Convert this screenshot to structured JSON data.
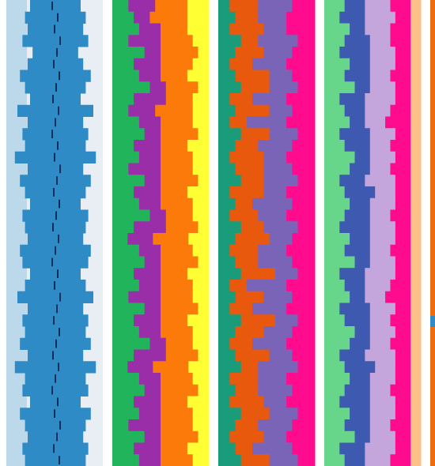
{
  "colors": {
    "blue": "#2f8bc6",
    "blue_light": "#bcd9ec",
    "blue_very_light": "#e8eef4",
    "dark_tick": "#0d2d5a",
    "green": "#22b45a",
    "purple": "#9a2ea8",
    "orange": "#fb7a0a",
    "yellow": "#ffff33",
    "magenta": "#ff0b8e",
    "grey_purple": "#7a64b8",
    "teal": "#1a9c7a",
    "orange_red": "#e8590d",
    "mint": "#67d68a",
    "navy": "#3d5ab0",
    "lavender": "#c4a5dc",
    "peach": "#fcc08a",
    "right_edge": "#f06a0e"
  },
  "chart_data": [
    {
      "type": "area",
      "panel": 1,
      "rows": 40,
      "series": [
        {
          "name": "",
          "values": [
            10,
            12,
            11,
            13,
            9,
            11,
            14,
            12,
            10,
            15,
            11,
            13,
            12,
            16,
            11,
            14,
            12,
            10,
            13,
            12,
            11,
            14,
            13,
            10,
            12,
            15,
            11,
            13,
            12,
            14,
            11,
            16,
            12,
            13,
            10,
            14,
            12,
            11,
            13,
            12
          ]
        }
      ]
    },
    {
      "type": "area",
      "panel": 2,
      "rows": 40,
      "series": [
        {
          "name": "",
          "values": [
            3,
            4,
            5,
            3,
            6,
            4,
            5,
            7,
            4,
            3,
            5,
            6,
            4,
            5,
            3,
            6,
            4,
            5,
            7,
            4,
            3,
            5,
            6,
            4,
            5,
            3,
            6,
            4,
            5,
            7,
            4,
            3,
            5,
            6,
            4,
            5,
            3,
            6,
            4,
            5
          ]
        },
        {
          "name": "",
          "values": [
            5,
            3,
            4,
            6,
            3,
            5,
            4,
            3,
            6,
            5,
            4,
            3,
            5,
            4,
            6,
            3,
            5,
            4,
            3,
            6,
            5,
            4,
            3,
            5,
            4,
            6,
            3,
            5,
            4,
            3,
            6,
            5,
            4,
            3,
            5,
            4,
            6,
            3,
            5,
            4
          ]
        },
        {
          "name": "",
          "values": [
            6,
            7,
            5,
            6,
            7,
            6,
            5,
            6,
            5,
            7,
            6,
            7,
            5,
            6,
            6,
            7,
            5,
            6,
            5,
            6,
            7,
            6,
            7,
            5,
            6,
            6,
            7,
            5,
            6,
            5,
            6,
            7,
            6,
            7,
            5,
            6,
            6,
            7,
            5,
            6
          ]
        },
        {
          "name": "",
          "values": [
            4,
            4,
            4,
            3,
            2,
            3,
            4,
            2,
            3,
            3,
            3,
            2,
            4,
            3,
            3,
            2,
            4,
            3,
            3,
            2,
            4,
            3,
            2,
            4,
            3,
            3,
            2,
            4,
            3,
            3,
            2,
            4,
            3,
            2,
            4,
            3,
            3,
            2,
            4,
            3
          ]
        }
      ]
    },
    {
      "type": "area",
      "panel": 3,
      "rows": 40,
      "series": [
        {
          "name": "",
          "values": [
            2,
            3,
            2,
            4,
            3,
            2,
            3,
            4,
            2,
            3,
            2,
            4,
            3,
            2,
            3,
            4,
            2,
            3,
            2,
            4,
            3,
            2,
            3,
            4,
            2,
            3,
            2,
            4,
            3,
            2,
            3,
            4,
            2,
            3,
            2,
            4,
            3,
            2,
            3,
            4
          ]
        },
        {
          "name": "",
          "values": [
            5,
            4,
            6,
            3,
            5,
            4,
            6,
            5,
            4,
            6,
            3,
            5,
            4,
            6,
            5,
            4,
            6,
            3,
            5,
            4,
            6,
            5,
            4,
            6,
            3,
            5,
            4,
            6,
            5,
            4,
            6,
            3,
            5,
            4,
            6,
            5,
            4,
            6,
            3,
            5
          ]
        },
        {
          "name": "",
          "values": [
            6,
            5,
            4,
            7,
            5,
            6,
            4,
            5,
            6,
            4,
            7,
            5,
            6,
            4,
            5,
            6,
            4,
            7,
            5,
            6,
            4,
            5,
            6,
            4,
            7,
            5,
            6,
            4,
            5,
            6,
            4,
            7,
            5,
            6,
            4,
            5,
            6,
            4,
            7,
            5
          ]
        },
        {
          "name": "",
          "values": [
            4,
            5,
            5,
            3,
            4,
            5,
            4,
            3,
            5,
            4,
            5,
            3,
            4,
            5,
            4,
            3,
            5,
            4,
            5,
            3,
            4,
            5,
            4,
            3,
            5,
            4,
            5,
            3,
            4,
            5,
            4,
            3,
            5,
            4,
            5,
            3,
            4,
            5,
            4,
            3
          ]
        }
      ]
    },
    {
      "type": "area",
      "panel": 4,
      "rows": 40,
      "series": [
        {
          "name": "",
          "values": [
            4,
            3,
            5,
            4,
            3,
            5,
            4,
            6,
            3,
            4,
            5,
            3,
            4,
            6,
            5,
            3,
            4,
            5,
            4,
            3,
            5,
            4,
            6,
            3,
            4,
            5,
            3,
            4,
            6,
            5,
            3,
            4,
            5,
            4,
            3,
            5,
            4,
            6,
            3,
            4
          ]
        },
        {
          "name": "",
          "values": [
            4,
            5,
            3,
            5,
            6,
            4,
            5,
            3,
            5,
            4,
            3,
            6,
            5,
            3,
            4,
            5,
            6,
            4,
            5,
            6,
            4,
            5,
            3,
            5,
            4,
            3,
            6,
            5,
            3,
            4,
            5,
            6,
            4,
            5,
            6,
            4,
            5,
            3,
            5,
            4
          ]
        },
        {
          "name": "",
          "values": [
            5,
            6,
            5,
            4,
            5,
            5,
            4,
            5,
            6,
            5,
            4,
            5,
            4,
            5,
            4,
            6,
            4,
            5,
            4,
            5,
            5,
            4,
            5,
            6,
            5,
            4,
            5,
            4,
            5,
            4,
            6,
            4,
            5,
            4,
            5,
            5,
            4,
            5,
            6,
            5
          ]
        },
        {
          "name": "",
          "values": [
            4,
            3,
            4,
            4,
            3,
            3,
            4,
            3,
            3,
            4,
            5,
            3,
            4,
            3,
            4,
            3,
            3,
            3,
            4,
            3,
            3,
            4,
            3,
            3,
            4,
            5,
            3,
            4,
            3,
            4,
            3,
            3,
            3,
            4,
            3,
            3,
            4,
            3,
            3,
            4
          ]
        },
        {
          "name": "",
          "values": [
            2,
            2,
            2,
            2,
            2,
            2,
            2,
            2,
            2,
            2,
            2,
            2,
            2,
            2,
            2,
            2,
            2,
            2,
            2,
            2,
            2,
            2,
            2,
            2,
            2,
            2,
            2,
            2,
            2,
            2,
            2,
            2,
            2,
            2,
            2,
            2,
            2,
            2,
            2,
            2
          ]
        }
      ]
    }
  ]
}
